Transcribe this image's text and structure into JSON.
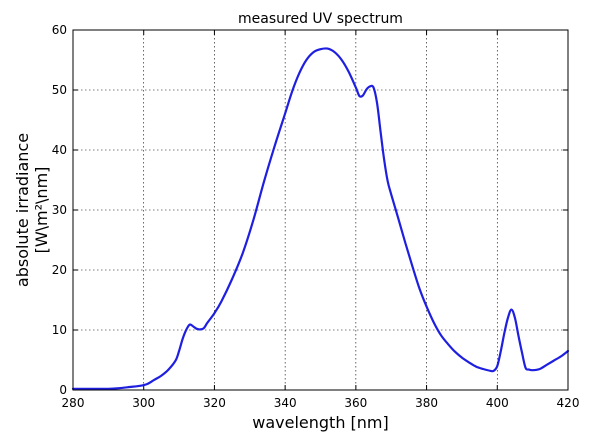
{
  "chart_data": {
    "type": "line",
    "title": "measured UV spectrum",
    "xlabel": "wavelength [nm]",
    "ylabel_lines": [
      "absolute irradiance",
      "[W\\m²\\nm]"
    ],
    "xlim": [
      280,
      420
    ],
    "ylim": [
      0,
      60
    ],
    "xticks": [
      280,
      300,
      320,
      340,
      360,
      380,
      400,
      420
    ],
    "yticks": [
      0,
      10,
      20,
      30,
      40,
      50,
      60
    ],
    "grid": true,
    "grid_style": "dotted",
    "line_color": "#1f1fe0",
    "series": [
      {
        "x": [
          280,
          285,
          290,
          293,
          296,
          299,
          301,
          303,
          305,
          307,
          309,
          310,
          311,
          312,
          313,
          314,
          315,
          316,
          317,
          318,
          320,
          322,
          325,
          328,
          331,
          334,
          337,
          340,
          342,
          344,
          346,
          348,
          350,
          352,
          354,
          356,
          358,
          360,
          361,
          362,
          363,
          364,
          365,
          366,
          367,
          368,
          369,
          370,
          372,
          374,
          376,
          378,
          380,
          382,
          384,
          386,
          388,
          390,
          392,
          394,
          396,
          398,
          399,
          400,
          401,
          402,
          403,
          404,
          405,
          406,
          407,
          408,
          409,
          410,
          412,
          414,
          416,
          418,
          420
        ],
        "y": [
          0.2,
          0.2,
          0.2,
          0.3,
          0.5,
          0.7,
          1.0,
          1.7,
          2.4,
          3.4,
          4.9,
          6.5,
          8.5,
          10.0,
          10.9,
          10.6,
          10.2,
          10.1,
          10.3,
          11.2,
          12.8,
          14.8,
          18.5,
          22.8,
          28.3,
          34.7,
          40.6,
          46.1,
          49.8,
          52.8,
          55.0,
          56.3,
          56.8,
          56.9,
          56.3,
          55.0,
          53.0,
          50.4,
          49.0,
          49.1,
          50.1,
          50.6,
          50.4,
          47.8,
          43.0,
          38.4,
          34.8,
          32.6,
          28.6,
          24.5,
          20.6,
          16.9,
          13.9,
          11.3,
          9.2,
          7.7,
          6.4,
          5.4,
          4.6,
          3.9,
          3.5,
          3.2,
          3.2,
          4.0,
          6.5,
          9.5,
          12.0,
          13.4,
          12.0,
          9.0,
          6.2,
          3.7,
          3.4,
          3.3,
          3.5,
          4.2,
          4.9,
          5.6,
          6.5
        ]
      }
    ]
  }
}
